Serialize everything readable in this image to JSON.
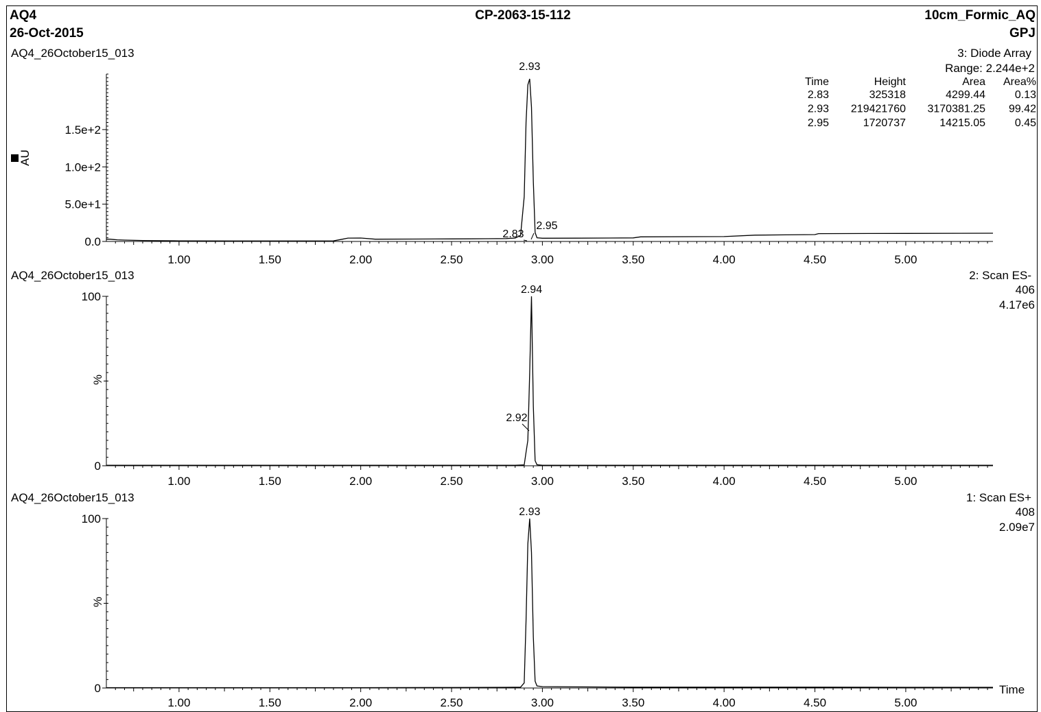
{
  "header": {
    "left_line1": "AQ4",
    "left_line2": "26-Oct-2015",
    "center": "CP-2063-15-112",
    "right_line1": "10cm_Formic_AQ",
    "right_line2": "GPJ"
  },
  "chart_data": [
    {
      "type": "line",
      "sample": "AQ4_26October15_013",
      "trace_label": "3: Diode Array",
      "range_label": "Range: 2.244e+2",
      "ylabel": "AU",
      "ytick_labels": [
        "0.0",
        "5.0e+1",
        "1.0e+2",
        "1.5e+2"
      ],
      "ytick_values": [
        0,
        50,
        100,
        150
      ],
      "xlim": [
        0.6,
        5.48
      ],
      "ylim": [
        0,
        224.4
      ],
      "xtick_labels": [
        "1.00",
        "1.50",
        "2.00",
        "2.50",
        "3.00",
        "3.50",
        "4.00",
        "4.50",
        "5.00"
      ],
      "peak_labels": [
        {
          "label": "2.93",
          "x": 2.93,
          "y": 210
        },
        {
          "label": "2.83",
          "x": 2.83,
          "y": 4
        },
        {
          "label": "2.95",
          "x": 2.95,
          "y": 4
        }
      ],
      "peak_table": {
        "headers": [
          "Time",
          "Height",
          "Area",
          "Area%"
        ],
        "rows": [
          [
            "2.83",
            "325318",
            "4299.44",
            "0.13"
          ],
          [
            "2.93",
            "219421760",
            "3170381.25",
            "99.42"
          ],
          [
            "2.95",
            "1720737",
            "14215.05",
            "0.45"
          ]
        ]
      },
      "x": [
        0.6,
        0.62,
        0.64,
        0.66,
        0.7,
        0.8,
        0.9,
        1.0,
        1.3,
        1.6,
        1.85,
        1.9,
        1.93,
        2.0,
        2.08,
        2.3,
        2.5,
        2.6,
        2.7,
        2.8,
        2.83,
        2.85,
        2.88,
        2.9,
        2.91,
        2.92,
        2.93,
        2.94,
        2.95,
        2.96,
        2.97,
        3.0,
        3.2,
        3.5,
        3.54,
        4.0,
        4.17,
        4.5,
        4.52,
        4.8,
        5.0,
        5.48
      ],
      "y": [
        3,
        3,
        2.6,
        2.2,
        1.8,
        1.3,
        1.0,
        0.8,
        0.6,
        0.6,
        0.7,
        3.0,
        4.5,
        4.6,
        3.0,
        3.2,
        3.4,
        3.5,
        3.7,
        3.9,
        4.3,
        4.5,
        8,
        60,
        160,
        210,
        218,
        180,
        80,
        12,
        5,
        4.3,
        4.4,
        4.8,
        6.2,
        6.5,
        8.5,
        9.2,
        10.5,
        10.7,
        10.8,
        11.0
      ]
    },
    {
      "type": "line",
      "sample": "AQ4_26October15_013",
      "trace_label": "2: Scan ES-",
      "mass_label": "406",
      "intensity_label": "4.17e6",
      "ylabel": "%",
      "ytick_labels": [
        "0",
        "100"
      ],
      "ytick_values": [
        0,
        100
      ],
      "xlim": [
        0.6,
        5.48
      ],
      "ylim": [
        0,
        100
      ],
      "xtick_labels": [
        "1.00",
        "1.50",
        "2.00",
        "2.50",
        "3.00",
        "3.50",
        "4.00",
        "4.50",
        "5.00"
      ],
      "peak_labels": [
        {
          "label": "2.94",
          "x": 2.94,
          "y": 100
        },
        {
          "label": "2.92",
          "x": 2.92,
          "y": 15
        }
      ],
      "x": [
        0.6,
        1.0,
        1.5,
        2.0,
        2.5,
        2.85,
        2.9,
        2.91,
        2.92,
        2.93,
        2.94,
        2.95,
        2.96,
        2.97,
        3.0,
        3.5,
        4.0,
        4.5,
        5.0,
        5.48
      ],
      "y": [
        0.3,
        0.3,
        0.3,
        0.3,
        0.3,
        0.3,
        0.5,
        8,
        15,
        55,
        100,
        35,
        3,
        0.6,
        0.3,
        0.3,
        0.3,
        0.3,
        0.3,
        0.3
      ]
    },
    {
      "type": "line",
      "sample": "AQ4_26October15_013",
      "trace_label": "1: Scan ES+",
      "mass_label": "408",
      "intensity_label": "2.09e7",
      "ylabel": "%",
      "xlabel": "Time",
      "ytick_labels": [
        "0",
        "100"
      ],
      "ytick_values": [
        0,
        100
      ],
      "xlim": [
        0.6,
        5.48
      ],
      "ylim": [
        0,
        100
      ],
      "xtick_labels": [
        "1.00",
        "1.50",
        "2.00",
        "2.50",
        "3.00",
        "3.50",
        "4.00",
        "4.50",
        "5.00"
      ],
      "peak_labels": [
        {
          "label": "2.93",
          "x": 2.93,
          "y": 100
        }
      ],
      "x": [
        0.6,
        1.0,
        1.5,
        2.0,
        2.5,
        2.8,
        2.88,
        2.9,
        2.91,
        2.92,
        2.93,
        2.94,
        2.95,
        2.96,
        2.97,
        3.0,
        3.5,
        4.0,
        4.5,
        5.0,
        5.48
      ],
      "y": [
        0.2,
        0.2,
        0.2,
        0.2,
        0.3,
        0.4,
        0.5,
        3,
        40,
        85,
        100,
        80,
        30,
        4,
        1.2,
        0.8,
        0.5,
        0.5,
        0.5,
        0.4,
        0.4
      ]
    }
  ]
}
